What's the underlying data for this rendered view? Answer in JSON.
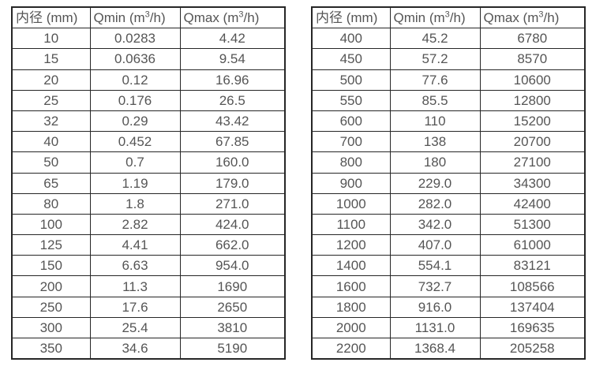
{
  "colors": {
    "border": "#262626",
    "text": "#555555",
    "background": "#ffffff"
  },
  "columns": [
    {
      "pre": "内径 (mm)",
      "sup": "",
      "post": ""
    },
    {
      "pre": "Qmin (m",
      "sup": "3",
      "post": "/h)"
    },
    {
      "pre": "Qmax (m",
      "sup": "3",
      "post": "/h)"
    }
  ],
  "left_table": {
    "rows": [
      [
        "10",
        "0.0283",
        "4.42"
      ],
      [
        "15",
        "0.0636",
        "9.54"
      ],
      [
        "20",
        "0.12",
        "16.96"
      ],
      [
        "25",
        "0.176",
        "26.5"
      ],
      [
        "32",
        "0.29",
        "43.42"
      ],
      [
        "40",
        "0.452",
        "67.85"
      ],
      [
        "50",
        "0.7",
        "160.0"
      ],
      [
        "65",
        "1.19",
        "179.0"
      ],
      [
        "80",
        "1.8",
        "271.0"
      ],
      [
        "100",
        "2.82",
        "424.0"
      ],
      [
        "125",
        "4.41",
        "662.0"
      ],
      [
        "150",
        "6.63",
        "954.0"
      ],
      [
        "200",
        "11.3",
        "1690"
      ],
      [
        "250",
        "17.6",
        "2650"
      ],
      [
        "300",
        "25.4",
        "3810"
      ],
      [
        "350",
        "34.6",
        "5190"
      ]
    ]
  },
  "right_table": {
    "rows": [
      [
        "400",
        "45.2",
        "6780"
      ],
      [
        "450",
        "57.2",
        "8570"
      ],
      [
        "500",
        "77.6",
        "10600"
      ],
      [
        "550",
        "85.5",
        "12800"
      ],
      [
        "600",
        "110",
        "15200"
      ],
      [
        "700",
        "138",
        "20700"
      ],
      [
        "800",
        "180",
        "27100"
      ],
      [
        "900",
        "229.0",
        "34300"
      ],
      [
        "1000",
        "282.0",
        "42400"
      ],
      [
        "1100",
        "342.0",
        "51300"
      ],
      [
        "1200",
        "407.0",
        "61000"
      ],
      [
        "1400",
        "554.1",
        "83121"
      ],
      [
        "1600",
        "732.7",
        "108566"
      ],
      [
        "1800",
        "916.0",
        "137404"
      ],
      [
        "2000",
        "1131.0",
        "169635"
      ],
      [
        "2200",
        "1368.4",
        "205258"
      ]
    ]
  }
}
